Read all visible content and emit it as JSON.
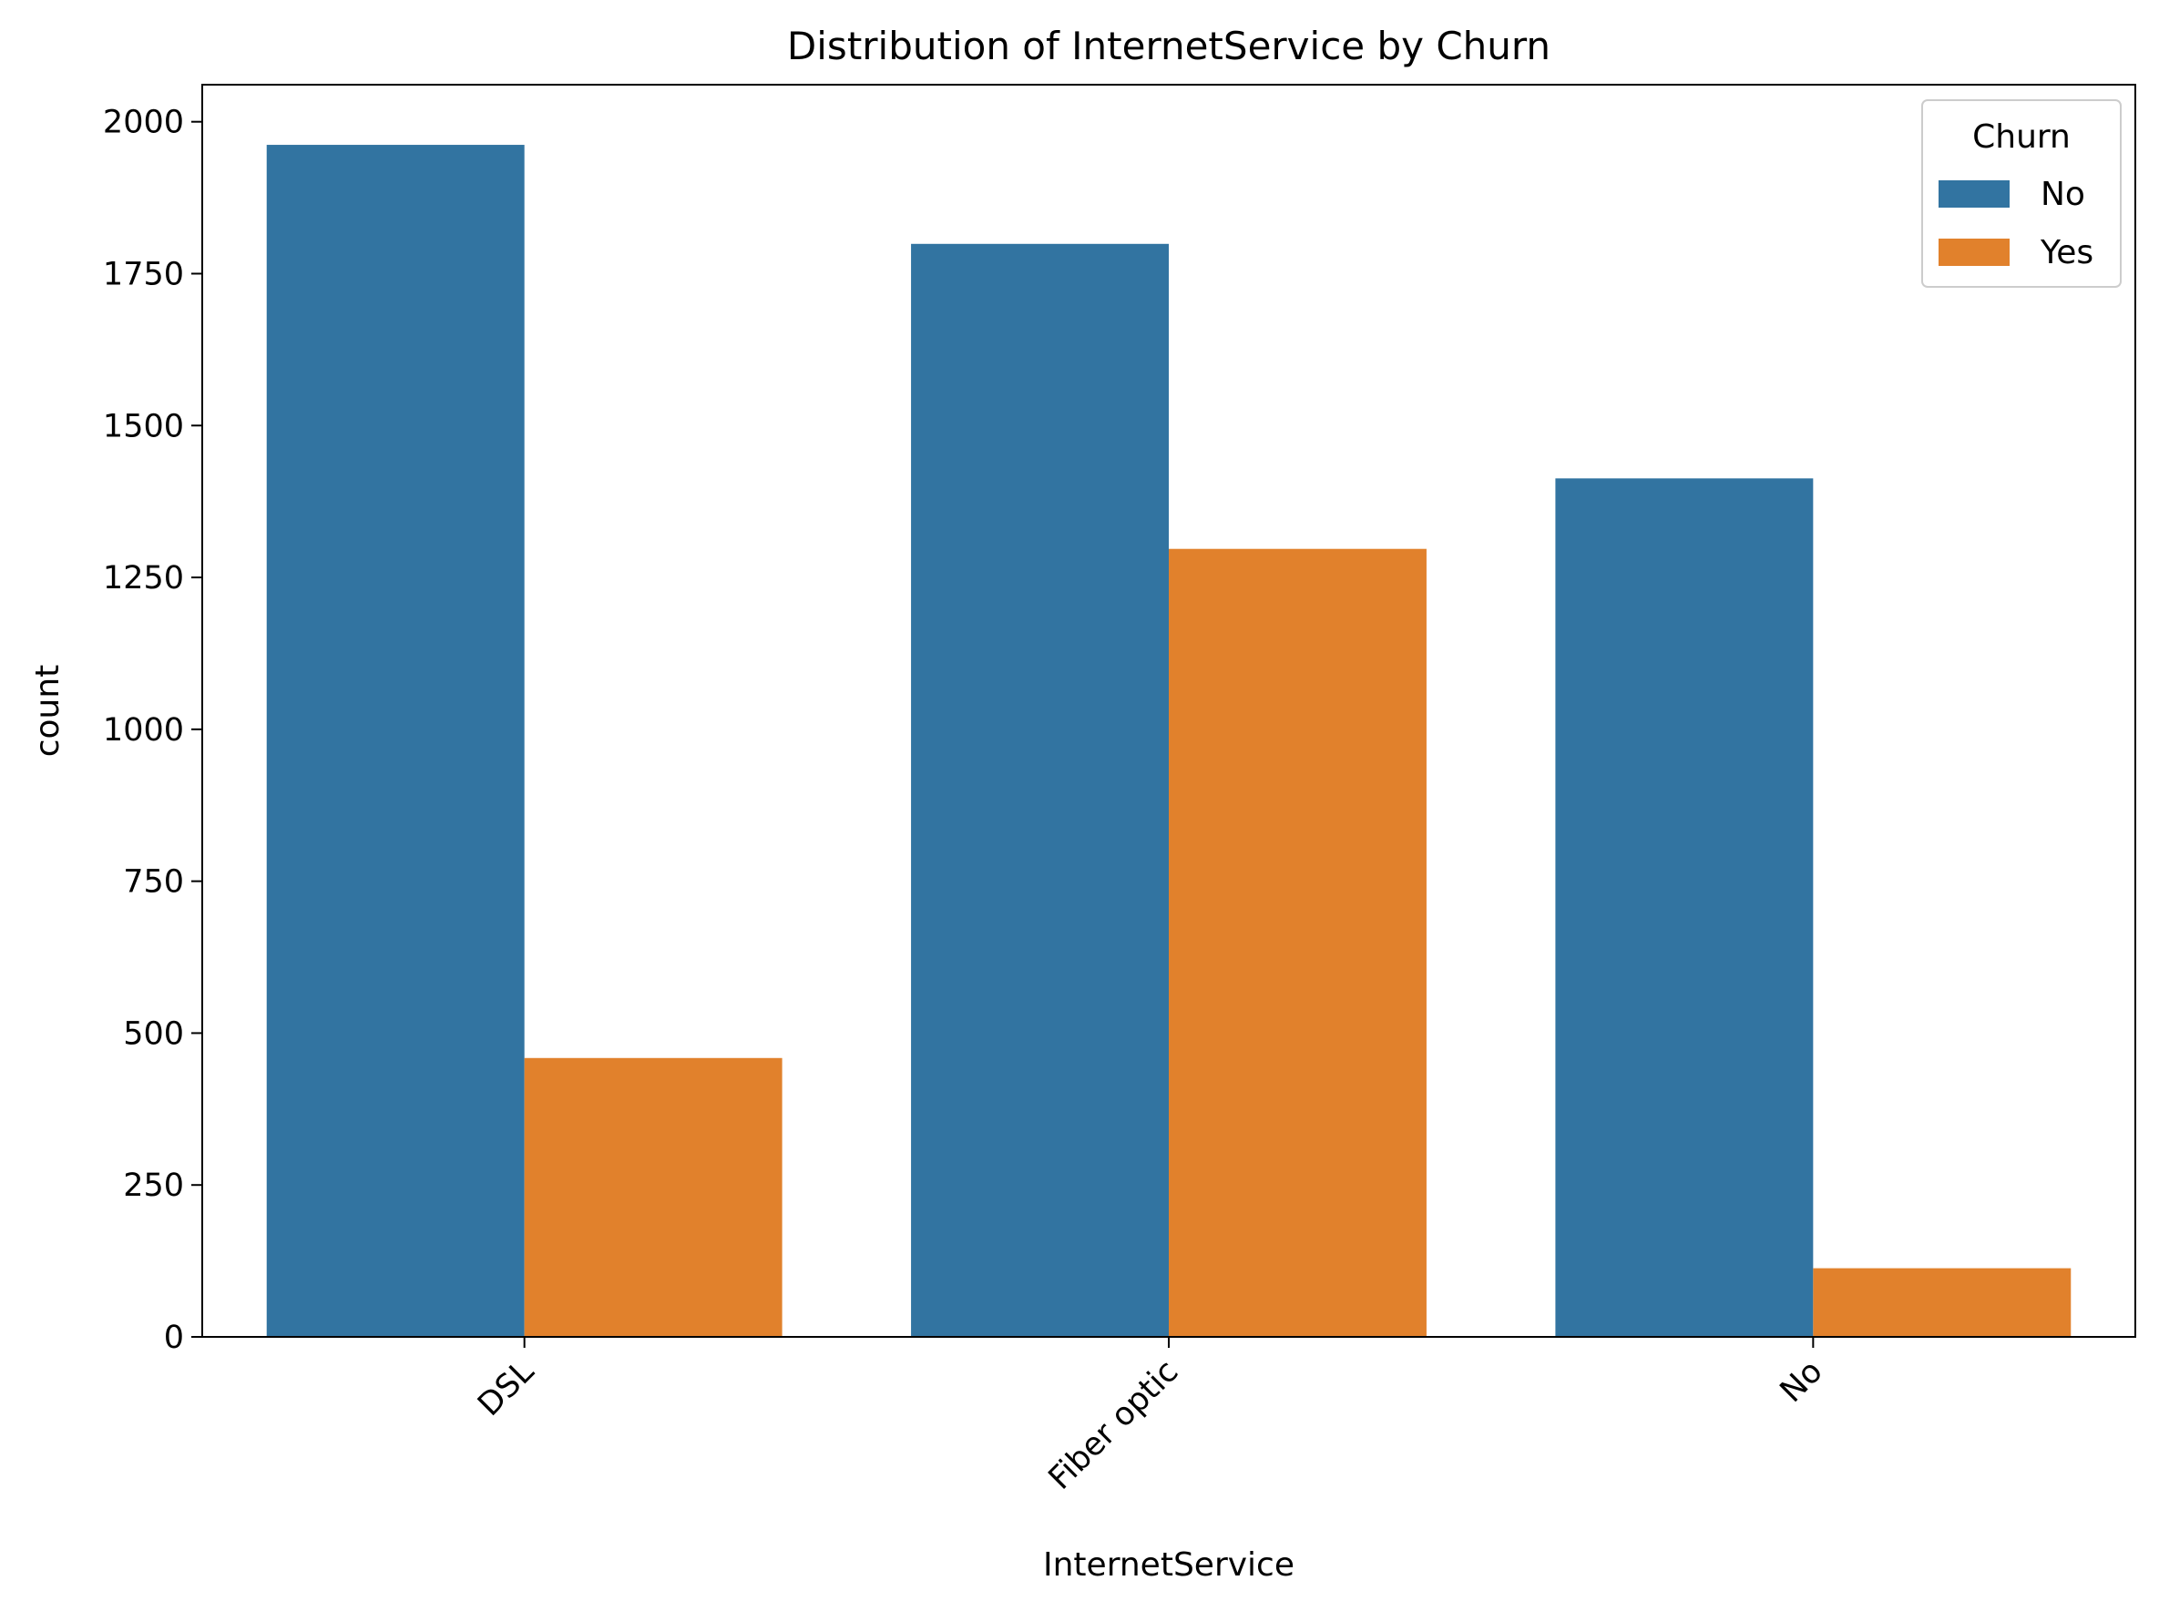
{
  "chart_data": {
    "type": "bar",
    "title": "Distribution of InternetService by Churn",
    "xlabel": "InternetService",
    "ylabel": "count",
    "categories": [
      "DSL",
      "Fiber optic",
      "No"
    ],
    "series": [
      {
        "name": "No",
        "color": "#3274a1",
        "values": [
          1962,
          1799,
          1413
        ]
      },
      {
        "name": "Yes",
        "color": "#e1812c",
        "values": [
          459,
          1297,
          113
        ]
      }
    ],
    "ylim": [
      0,
      2061
    ],
    "yticks": [
      0,
      250,
      500,
      750,
      1000,
      1250,
      1500,
      1750,
      2000
    ],
    "legend": {
      "title": "Churn",
      "position": "top-right"
    },
    "grid": false,
    "xtick_rotation": 45
  }
}
